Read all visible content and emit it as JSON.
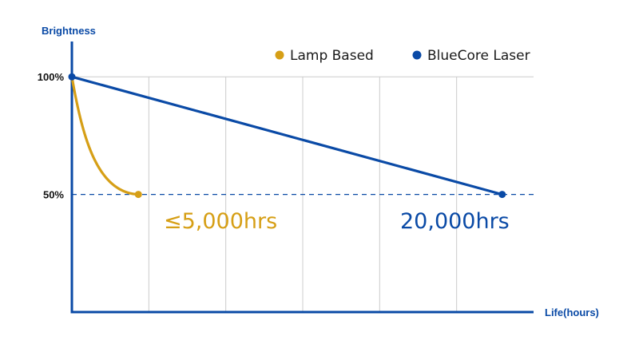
{
  "chart_data": {
    "type": "line",
    "ylabel": "Brightness",
    "xlabel": "Life(hours)",
    "y_ticks": [
      "100%",
      "50%"
    ],
    "y_tick_values": [
      100,
      50
    ],
    "x_range": [
      0,
      25000
    ],
    "y_range": [
      0,
      115
    ],
    "grid": "vertical",
    "threshold": 50,
    "legend_position": "top-right",
    "series": [
      {
        "name": "Lamp Based",
        "color": "#d69f16",
        "shape": "decay-curve",
        "start": [
          0,
          100
        ],
        "end": [
          3600,
          50
        ],
        "end_label": "≤5,000hrs"
      },
      {
        "name": "BlueCore Laser",
        "color": "#0a4aa6",
        "shape": "linear",
        "start": [
          0,
          100
        ],
        "end": [
          23300,
          50
        ],
        "end_label": "20,000hrs"
      }
    ],
    "colors": {
      "axis": "#0a4aa6",
      "grid": "#cccccc",
      "threshold": "#0a4aa6"
    }
  }
}
